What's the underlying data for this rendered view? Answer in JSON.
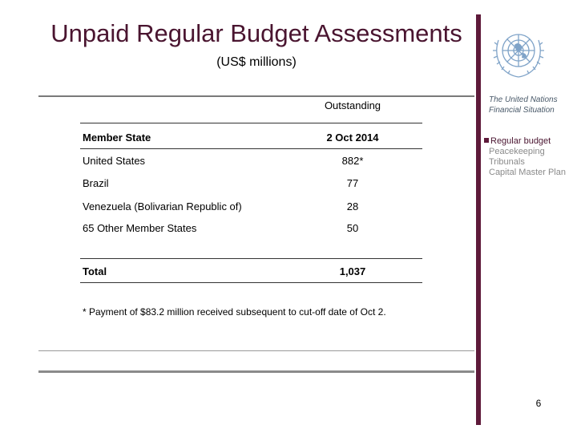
{
  "slide": {
    "title": "Unpaid Regular Budget Assessments",
    "subtitle": "(US$ millions)",
    "page_number": "6"
  },
  "sidebar": {
    "org_title": "The United Nations Financial Situation",
    "logo_icon": "un-emblem-icon",
    "accent_color": "#5e1a3a",
    "items": [
      {
        "label": "Regular budget",
        "active": true
      },
      {
        "label": "Peacekeeping",
        "active": false
      },
      {
        "label": "Tribunals",
        "active": false
      },
      {
        "label": "Capital Master Plan",
        "active": false
      }
    ]
  },
  "table": {
    "group_header": "Outstanding",
    "columns": [
      "Member State",
      "2 Oct 2014"
    ],
    "rows": [
      {
        "state": "United States",
        "value": "882*"
      },
      {
        "state": "Brazil",
        "value": "77"
      },
      {
        "state": "Venezuela (Bolivarian Republic of)",
        "value": "28"
      },
      {
        "state": "65 Other Member States",
        "value": "50"
      }
    ],
    "total": {
      "label": "Total",
      "value": "1,037"
    }
  },
  "footnote": "* Payment of $83.2 million received subsequent to cut-off date of Oct 2."
}
